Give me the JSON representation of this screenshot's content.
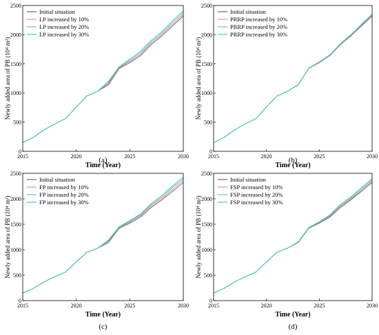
{
  "colors": {
    "Initial situation": "#5a5a5a",
    "increased by 10%": "#f08080",
    "increased by 20%": "#6fa8dc",
    "increased by 30%": "#2fd1a0"
  },
  "chart_data": [
    {
      "type": "line",
      "panel_label": "(a)",
      "xlabel": "Time (Year)",
      "ylabel": "Newly added area of PB (10⁴ m²)",
      "xlim": [
        2015,
        2030
      ],
      "ylim": [
        0,
        2500
      ],
      "xticks": [
        2015,
        2020,
        2025,
        2030
      ],
      "yticks": [
        0,
        500,
        1000,
        1500,
        2000,
        2500
      ],
      "legend_position": "top-left",
      "x": [
        2015,
        2016,
        2017,
        2018,
        2019,
        2020,
        2021,
        2022,
        2023,
        2024,
        2025,
        2026,
        2027,
        2028,
        2029,
        2030
      ],
      "series": [
        {
          "name": "Initial situation",
          "values": [
            150,
            240,
            370,
            470,
            560,
            760,
            950,
            1030,
            1140,
            1420,
            1520,
            1640,
            1830,
            1980,
            2150,
            2320
          ]
        },
        {
          "name": "LP increased by 10%",
          "values": [
            150,
            240,
            370,
            470,
            560,
            760,
            950,
            1030,
            1160,
            1430,
            1540,
            1665,
            1855,
            2005,
            2180,
            2350
          ]
        },
        {
          "name": "LP increased by 20%",
          "values": [
            150,
            240,
            370,
            470,
            560,
            760,
            950,
            1030,
            1180,
            1440,
            1560,
            1690,
            1880,
            2030,
            2210,
            2380
          ]
        },
        {
          "name": "LP increased by 30%",
          "values": [
            150,
            240,
            370,
            470,
            560,
            760,
            950,
            1030,
            1200,
            1450,
            1580,
            1715,
            1905,
            2055,
            2240,
            2410
          ]
        }
      ]
    },
    {
      "type": "line",
      "panel_label": "(b)",
      "xlabel": "Time (Year)",
      "ylabel": "Newly added area of PB (10⁴ m²)",
      "xlim": [
        2015,
        2030
      ],
      "ylim": [
        0,
        2500
      ],
      "xticks": [
        2015,
        2020,
        2025,
        2030
      ],
      "yticks": [
        0,
        500,
        1000,
        1500,
        2000,
        2500
      ],
      "legend_position": "top-left",
      "x": [
        2015,
        2016,
        2017,
        2018,
        2019,
        2020,
        2021,
        2022,
        2023,
        2024,
        2025,
        2026,
        2027,
        2028,
        2029,
        2030
      ],
      "series": [
        {
          "name": "Initial situation",
          "values": [
            150,
            240,
            370,
            470,
            560,
            760,
            950,
            1030,
            1140,
            1420,
            1520,
            1640,
            1830,
            1980,
            2150,
            2320
          ]
        },
        {
          "name": "PRRP increased by 10%",
          "values": [
            150,
            240,
            370,
            470,
            560,
            760,
            950,
            1030,
            1142,
            1422,
            1525,
            1645,
            1836,
            1988,
            2160,
            2330
          ]
        },
        {
          "name": "PRRP increased by 20%",
          "values": [
            150,
            240,
            370,
            470,
            560,
            760,
            950,
            1030,
            1144,
            1424,
            1530,
            1650,
            1842,
            1995,
            2170,
            2340
          ]
        },
        {
          "name": "PRRP increased by 30%",
          "values": [
            150,
            240,
            370,
            470,
            560,
            760,
            950,
            1030,
            1146,
            1426,
            1535,
            1655,
            1848,
            2002,
            2180,
            2350
          ]
        }
      ]
    },
    {
      "type": "line",
      "panel_label": "(c)",
      "xlabel": "Time (Year)",
      "ylabel": "Newly added area of PB (10⁴ m²)",
      "xlim": [
        2015,
        2030
      ],
      "ylim": [
        0,
        2500
      ],
      "xticks": [
        2015,
        2020,
        2025,
        2030
      ],
      "yticks": [
        0,
        500,
        1000,
        1500,
        2000,
        2500
      ],
      "legend_position": "top-left",
      "x": [
        2015,
        2016,
        2017,
        2018,
        2019,
        2020,
        2021,
        2022,
        2023,
        2024,
        2025,
        2026,
        2027,
        2028,
        2029,
        2030
      ],
      "series": [
        {
          "name": "Initial situation",
          "values": [
            150,
            240,
            370,
            470,
            560,
            760,
            950,
            1030,
            1140,
            1420,
            1520,
            1640,
            1830,
            1980,
            2150,
            2320
          ]
        },
        {
          "name": "FP increased by 10%",
          "values": [
            150,
            240,
            370,
            470,
            560,
            760,
            950,
            1030,
            1160,
            1430,
            1540,
            1665,
            1860,
            2010,
            2190,
            2360
          ]
        },
        {
          "name": "FP increased by 20%",
          "values": [
            150,
            240,
            370,
            470,
            560,
            760,
            950,
            1030,
            1175,
            1440,
            1555,
            1685,
            1885,
            2040,
            2225,
            2400
          ]
        },
        {
          "name": "FP increased by 30%",
          "values": [
            150,
            240,
            370,
            470,
            560,
            760,
            950,
            1030,
            1190,
            1450,
            1570,
            1700,
            1905,
            2065,
            2255,
            2430
          ]
        }
      ]
    },
    {
      "type": "line",
      "panel_label": "(d)",
      "xlabel": "Time (Year)",
      "ylabel": "Newly added area of PB (10⁴ m²)",
      "xlim": [
        2015,
        2030
      ],
      "ylim": [
        0,
        2500
      ],
      "xticks": [
        2015,
        2020,
        2025,
        2030
      ],
      "yticks": [
        0,
        500,
        1000,
        1500,
        2000,
        2500
      ],
      "legend_position": "top-left",
      "x": [
        2015,
        2016,
        2017,
        2018,
        2019,
        2020,
        2021,
        2022,
        2023,
        2024,
        2025,
        2026,
        2027,
        2028,
        2029,
        2030
      ],
      "series": [
        {
          "name": "Initial situation",
          "values": [
            150,
            240,
            370,
            470,
            560,
            760,
            950,
            1030,
            1140,
            1420,
            1520,
            1640,
            1830,
            1980,
            2150,
            2320
          ]
        },
        {
          "name": "FSP increased by 10%",
          "values": [
            150,
            240,
            370,
            470,
            560,
            760,
            950,
            1030,
            1145,
            1425,
            1530,
            1655,
            1850,
            2000,
            2175,
            2345
          ]
        },
        {
          "name": "FSP increased by 20%",
          "values": [
            150,
            240,
            370,
            470,
            560,
            760,
            950,
            1030,
            1150,
            1430,
            1540,
            1670,
            1870,
            2020,
            2200,
            2370
          ]
        },
        {
          "name": "FSP increased by 30%",
          "values": [
            150,
            240,
            370,
            470,
            560,
            760,
            950,
            1030,
            1155,
            1435,
            1550,
            1685,
            1890,
            2040,
            2225,
            2395
          ]
        }
      ]
    }
  ]
}
